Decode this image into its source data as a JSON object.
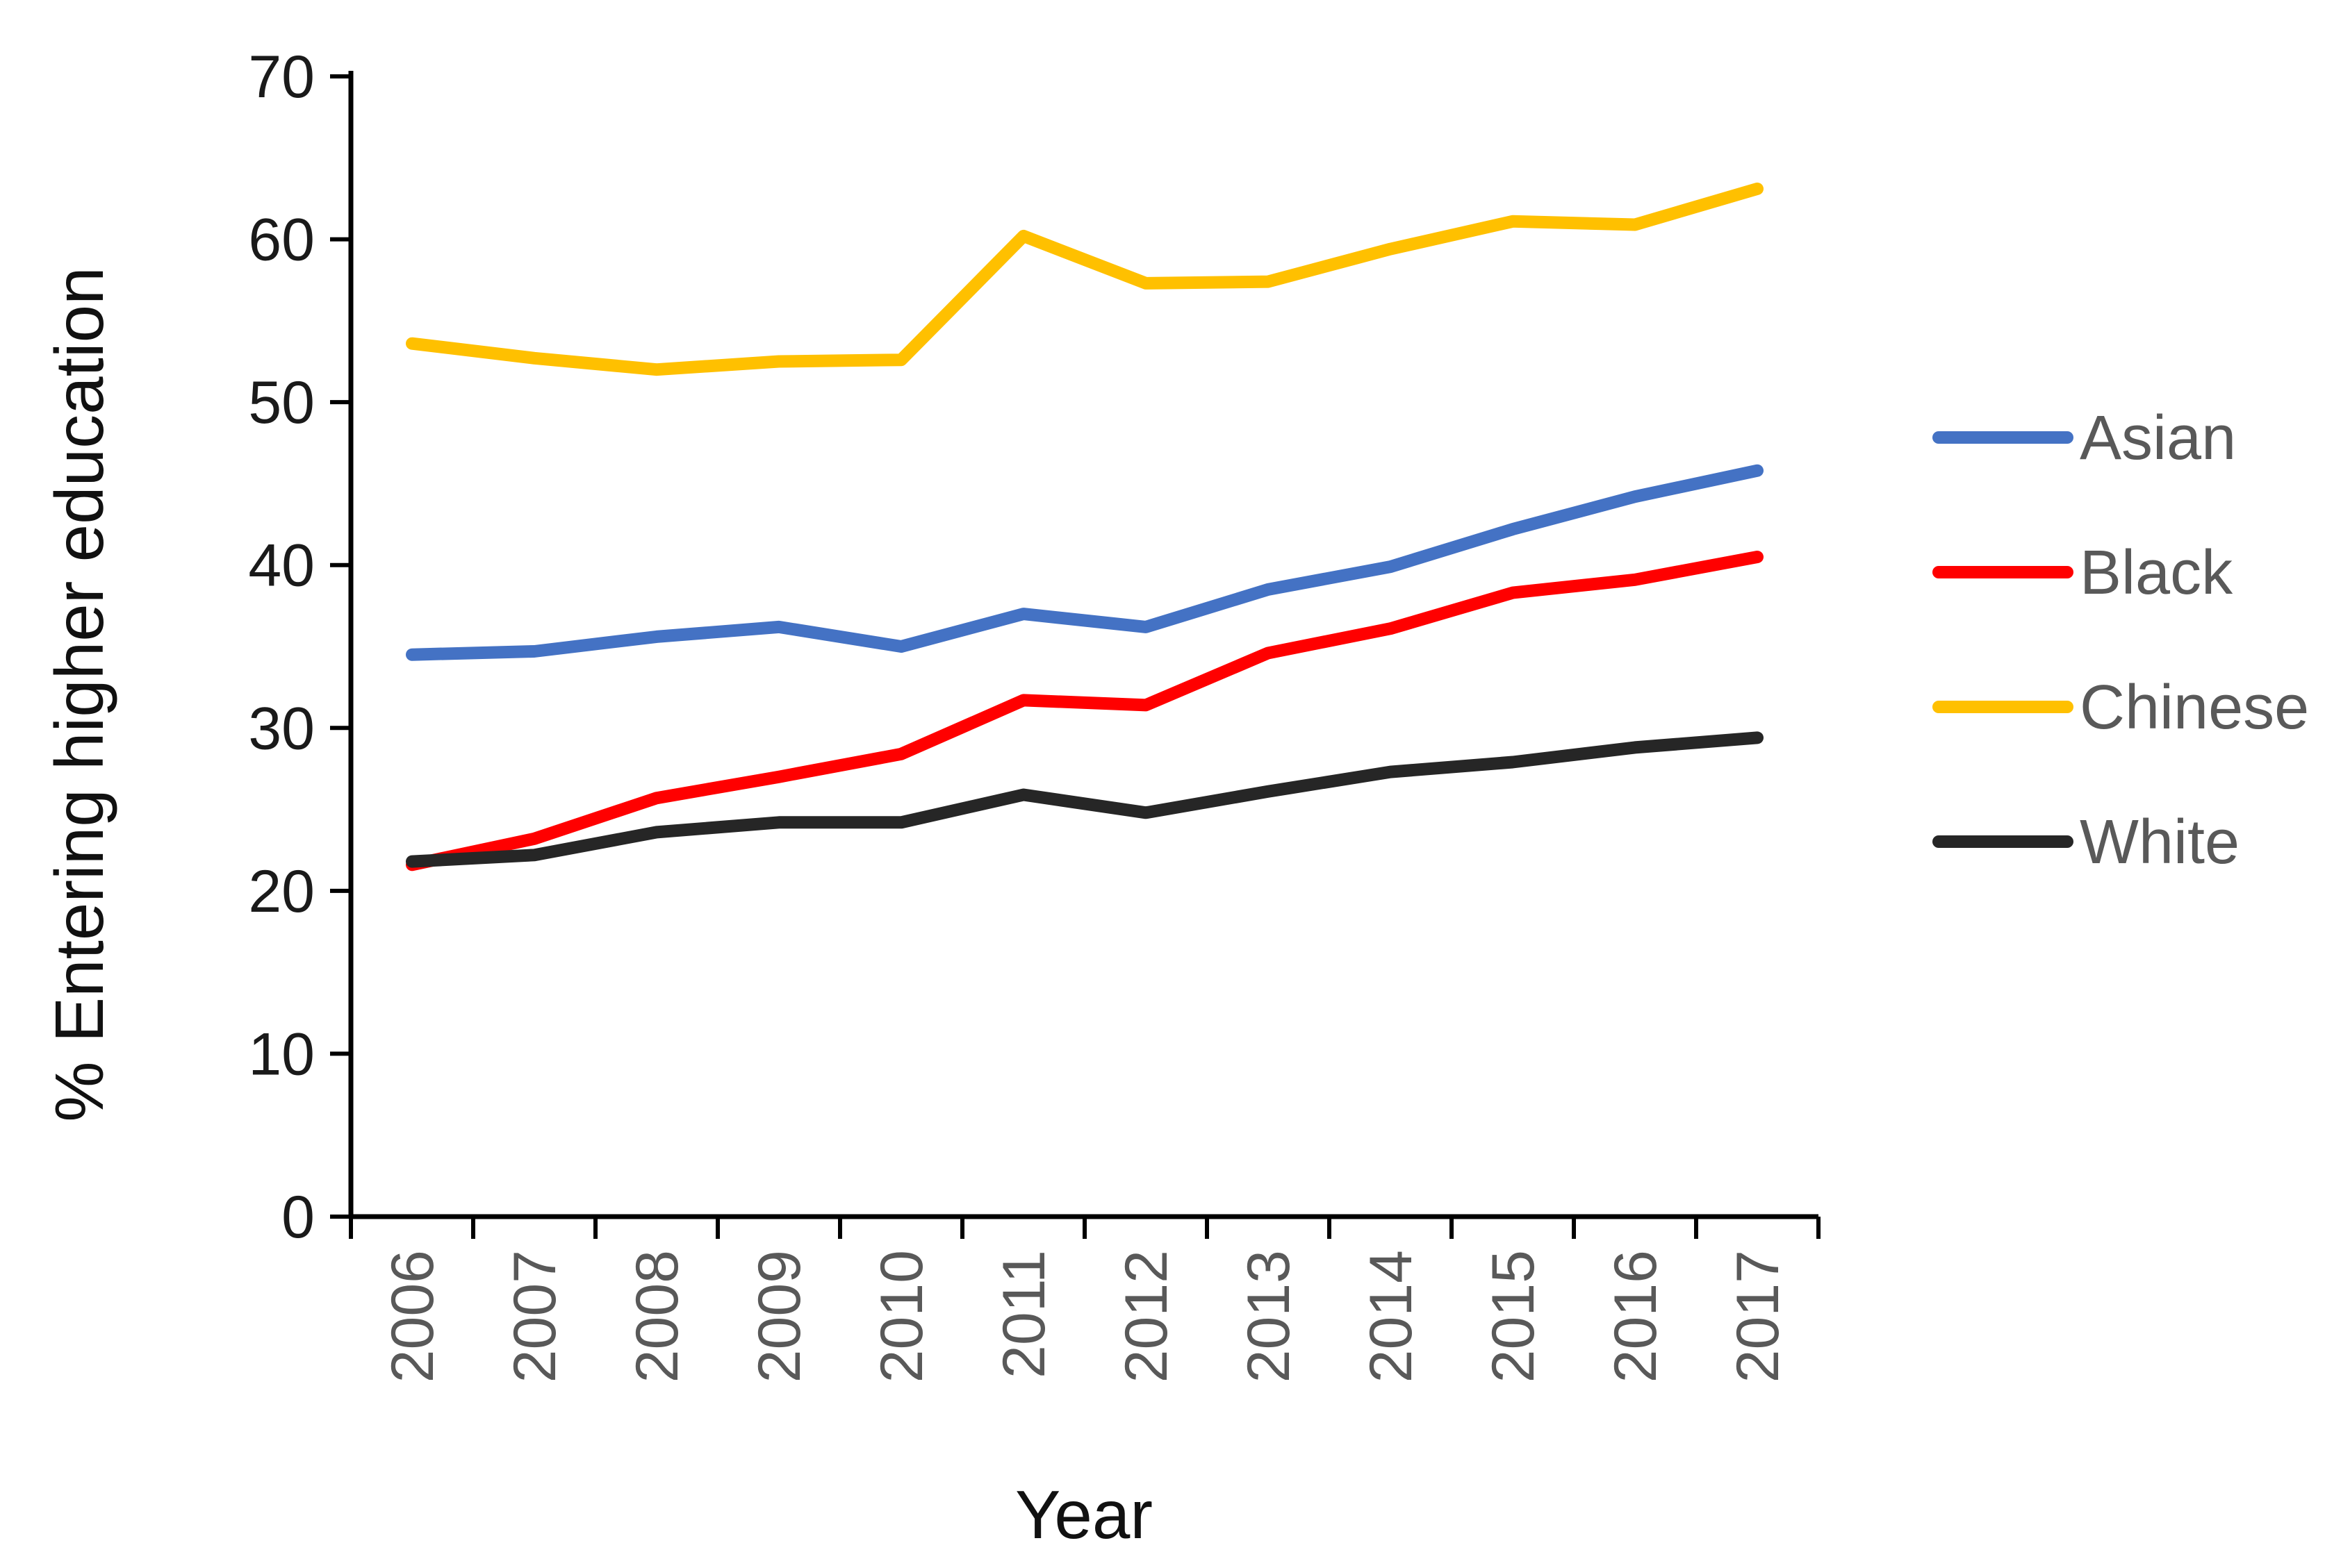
{
  "chart_data": {
    "type": "line",
    "title": "",
    "xlabel": "Year",
    "ylabel": "% Entering higher education",
    "ylim": [
      0,
      70
    ],
    "yticks": [
      0,
      10,
      20,
      30,
      40,
      50,
      60,
      70
    ],
    "y_tick_labels": [
      "0",
      "10",
      "20",
      "30",
      "40",
      "50",
      "60",
      "70"
    ],
    "categories": [
      "2006",
      "2007",
      "2008",
      "2009",
      "2010",
      "2011",
      "2012",
      "2013",
      "2014",
      "2015",
      "2016",
      "2017"
    ],
    "grid": false,
    "legend_position": "right",
    "series": [
      {
        "name": "Asian",
        "color": "#4472c4",
        "values": [
          34.5,
          34.7,
          35.6,
          36.2,
          35.0,
          37.0,
          36.2,
          38.5,
          39.9,
          42.2,
          44.2,
          45.8
        ]
      },
      {
        "name": "Black",
        "color": "#ff0000",
        "values": [
          21.6,
          23.2,
          25.7,
          27.0,
          28.4,
          31.7,
          31.4,
          34.6,
          36.1,
          38.3,
          39.1,
          40.5
        ]
      },
      {
        "name": "Chinese",
        "color": "#ffc000",
        "values": [
          53.6,
          52.7,
          52.0,
          52.5,
          52.6,
          60.2,
          57.3,
          57.4,
          59.4,
          61.1,
          60.9,
          63.1
        ]
      },
      {
        "name": "White",
        "color": "#262626",
        "values": [
          21.8,
          22.2,
          23.6,
          24.2,
          24.2,
          25.9,
          24.8,
          26.1,
          27.3,
          27.9,
          28.8,
          29.4
        ]
      }
    ]
  }
}
